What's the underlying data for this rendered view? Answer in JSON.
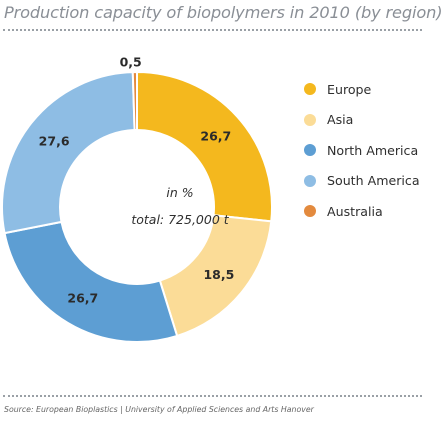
{
  "title": "Production capacity of biopolymers in 2010 (by region)",
  "source": "Source: European Bioplastics | University of Applied Sciences and Arts Hanover",
  "chart_data": {
    "type": "pie",
    "variant": "donut",
    "title": "Production capacity of biopolymers in 2010 (by region)",
    "center_label_unit": "in %",
    "center_label_total": "total: 725,000 t",
    "legend_position": "right",
    "categories": [
      "Europe",
      "Asia",
      "North America",
      "South America",
      "Australia"
    ],
    "values": [
      26.7,
      18.5,
      26.7,
      27.6,
      0.5
    ],
    "value_labels": [
      "26,7",
      "18,5",
      "26,7",
      "27,6",
      "0,5"
    ],
    "colors": [
      "#f4b81e",
      "#fbdc97",
      "#5d9ed3",
      "#8ebde4",
      "#e38a3e"
    ]
  }
}
